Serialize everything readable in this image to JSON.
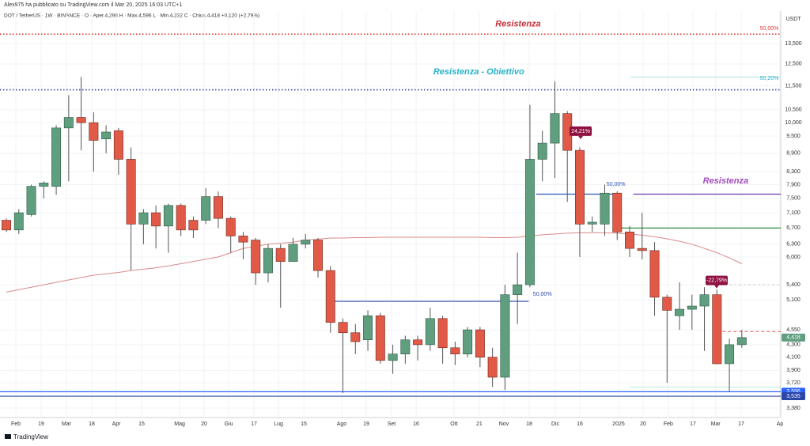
{
  "chart_data": {
    "type": "candlestick",
    "title": "Alex975 ha pubblicato su TradingView.com il Mar 20, 2025 16:03 UTC+1",
    "subtitle": "DOT / TetherUS · 1W · BINANCE · O · Aper.4,298  H · Max.4,596  L · Min.4,232  C · Chius.4,418  +0,120 (+2,79%)",
    "currency": "USDT",
    "footer": "TradingView",
    "log_scale": true,
    "grid": true,
    "xlim": [
      -0.51,
      62.12
    ],
    "ylim": [
      3.26,
      15.1
    ],
    "xticks": [
      {
        "value": 0.76,
        "label": "Feb"
      },
      {
        "value": 2.79,
        "label": "19"
      },
      {
        "value": 4.82,
        "label": "Mar"
      },
      {
        "value": 6.85,
        "label": "18"
      },
      {
        "value": 8.82,
        "label": "Apr"
      },
      {
        "value": 10.85,
        "label": "15"
      },
      {
        "value": 13.9,
        "label": "Mag"
      },
      {
        "value": 15.86,
        "label": "20"
      },
      {
        "value": 17.83,
        "label": "Giu"
      },
      {
        "value": 19.86,
        "label": "17"
      },
      {
        "value": 21.83,
        "label": "Lug"
      },
      {
        "value": 23.86,
        "label": "15"
      },
      {
        "value": 26.9,
        "label": "Ago"
      },
      {
        "value": 28.87,
        "label": "19"
      },
      {
        "value": 30.9,
        "label": "Set"
      },
      {
        "value": 32.87,
        "label": "16"
      },
      {
        "value": 35.91,
        "label": "Ott"
      },
      {
        "value": 37.94,
        "label": "21"
      },
      {
        "value": 39.91,
        "label": "Nov"
      },
      {
        "value": 41.94,
        "label": "18"
      },
      {
        "value": 44.04,
        "label": "Dic"
      },
      {
        "value": 46.0,
        "label": "16"
      },
      {
        "value": 49.11,
        "label": "2025"
      },
      {
        "value": 51.08,
        "label": "20"
      },
      {
        "value": 53.1,
        "label": "Feb"
      },
      {
        "value": 55.08,
        "label": "17"
      },
      {
        "value": 56.9,
        "label": "Mar"
      },
      {
        "value": 58.95,
        "label": "17"
      },
      {
        "value": 62.06,
        "label": "Ap"
      }
    ],
    "yticks": [
      {
        "value": 13.5,
        "label": "13,500"
      },
      {
        "value": 12.5,
        "label": "12,500"
      },
      {
        "value": 11.5,
        "label": "11,500"
      },
      {
        "value": 10.5,
        "label": "10,500"
      },
      {
        "value": 10.0,
        "label": "10,000"
      },
      {
        "value": 9.5,
        "label": "9,500"
      },
      {
        "value": 8.9,
        "label": "8,900"
      },
      {
        "value": 8.3,
        "label": "8,300"
      },
      {
        "value": 7.9,
        "label": "7,900"
      },
      {
        "value": 7.5,
        "label": "7,500"
      },
      {
        "value": 7.1,
        "label": "7,100"
      },
      {
        "value": 6.7,
        "label": "6,700"
      },
      {
        "value": 6.3,
        "label": "6,300"
      },
      {
        "value": 6.0,
        "label": "6,000"
      },
      {
        "value": 5.4,
        "label": "5,400"
      },
      {
        "value": 5.1,
        "label": "5,100"
      },
      {
        "value": 4.55,
        "label": "4,550"
      },
      {
        "value": 4.3,
        "label": "4,300"
      },
      {
        "value": 4.1,
        "label": "4,100"
      },
      {
        "value": 3.9,
        "label": "3,900"
      },
      {
        "value": 3.72,
        "label": "3,720"
      },
      {
        "value": 3.38,
        "label": "3,380"
      }
    ],
    "up_color": "#5f9e7f",
    "down_color": "#e05a47",
    "x": [
      0,
      1,
      2,
      3,
      4,
      5,
      6,
      7,
      8,
      9,
      10,
      11,
      12,
      13,
      14,
      15,
      16,
      17,
      18,
      19,
      20,
      21,
      22,
      23,
      24,
      25,
      26,
      27,
      28,
      29,
      30,
      31,
      32,
      33,
      34,
      35,
      36,
      37,
      38,
      39,
      40,
      41,
      42,
      43,
      44,
      45,
      46,
      47,
      48,
      49,
      50,
      51,
      52,
      53,
      54,
      55,
      56,
      57,
      58,
      59
    ],
    "open": [
      6.9,
      6.65,
      7.05,
      7.85,
      7.85,
      9.8,
      10.2,
      10.0,
      9.4,
      9.7,
      8.7,
      6.8,
      7.1,
      6.75,
      7.3,
      6.9,
      6.9,
      7.55,
      6.95,
      6.5,
      6.4,
      5.65,
      6.2,
      5.9,
      6.3,
      6.4,
      5.7,
      4.68,
      4.5,
      4.38,
      4.8,
      4.05,
      4.15,
      4.38,
      4.3,
      4.75,
      4.25,
      4.15,
      4.55,
      4.1,
      3.8,
      5.2,
      5.4,
      8.7,
      9.25,
      10.35,
      9.0,
      6.8,
      6.8,
      7.65,
      6.6,
      6.2,
      6.15,
      5.15,
      4.8,
      4.92,
      4.98,
      5.2,
      4.0,
      4.3
    ],
    "high": [
      6.95,
      7.2,
      7.9,
      8.0,
      9.9,
      11.1,
      11.9,
      10.4,
      9.9,
      9.8,
      9.1,
      7.2,
      7.3,
      7.35,
      7.35,
      7.0,
      7.8,
      7.7,
      7.0,
      6.6,
      6.45,
      6.3,
      6.3,
      6.45,
      6.55,
      6.45,
      5.8,
      4.75,
      4.65,
      4.9,
      4.85,
      4.3,
      4.45,
      4.45,
      4.95,
      4.8,
      4.35,
      4.6,
      4.6,
      4.25,
      5.4,
      6.1,
      10.7,
      9.7,
      11.7,
      10.45,
      9.1,
      7.0,
      7.9,
      7.7,
      6.75,
      7.1,
      6.35,
      5.2,
      5.45,
      5.2,
      5.35,
      5.3,
      4.4,
      4.55
    ],
    "low": [
      6.6,
      6.55,
      7.0,
      7.5,
      7.6,
      8.0,
      9.0,
      8.3,
      8.9,
      8.2,
      5.7,
      6.3,
      6.2,
      6.1,
      6.5,
      6.45,
      6.8,
      6.7,
      6.1,
      5.95,
      5.4,
      5.45,
      4.95,
      5.9,
      6.2,
      5.55,
      4.5,
      3.58,
      4.15,
      4.2,
      4.0,
      3.85,
      4.0,
      4.05,
      4.2,
      4.0,
      3.98,
      4.1,
      3.95,
      3.66,
      3.62,
      4.65,
      5.35,
      8.0,
      8.1,
      7.4,
      6.0,
      6.6,
      6.5,
      6.4,
      6.0,
      5.95,
      4.8,
      3.72,
      4.55,
      4.55,
      4.2,
      3.99,
      3.6,
      4.25
    ],
    "close": [
      6.65,
      7.1,
      7.85,
      7.95,
      9.8,
      10.2,
      10.0,
      9.35,
      9.65,
      8.7,
      6.8,
      7.1,
      6.75,
      7.3,
      6.65,
      6.65,
      7.55,
      6.95,
      6.5,
      6.35,
      5.65,
      6.2,
      5.9,
      6.3,
      6.4,
      5.7,
      4.68,
      4.5,
      4.35,
      4.8,
      4.05,
      4.15,
      4.38,
      4.3,
      4.75,
      4.25,
      4.15,
      4.55,
      4.1,
      3.8,
      5.2,
      5.4,
      8.7,
      9.25,
      10.35,
      9.0,
      6.8,
      6.85,
      7.65,
      6.6,
      6.2,
      6.15,
      5.15,
      4.9,
      4.92,
      4.98,
      5.2,
      4.0,
      4.3,
      4.418
    ],
    "moving_average": {
      "color": "#d98a8a",
      "values": [
        5.25,
        5.3,
        5.35,
        5.4,
        5.45,
        5.5,
        5.55,
        5.6,
        5.63,
        5.66,
        5.7,
        5.73,
        5.76,
        5.8,
        5.85,
        5.9,
        5.95,
        6.0,
        6.1,
        6.2,
        6.25,
        6.3,
        6.32,
        6.35,
        6.4,
        6.42,
        6.45,
        6.45,
        6.46,
        6.46,
        6.47,
        6.47,
        6.47,
        6.47,
        6.47,
        6.47,
        6.47,
        6.47,
        6.47,
        6.46,
        6.46,
        6.47,
        6.5,
        6.53,
        6.55,
        6.57,
        6.58,
        6.58,
        6.58,
        6.57,
        6.55,
        6.52,
        6.48,
        6.43,
        6.37,
        6.3,
        6.2,
        6.1,
        5.98,
        5.85
      ]
    },
    "levels": [
      {
        "value": 14.0,
        "color": "#e53935",
        "dash": "1.5 2.5",
        "width": 1.6
      },
      {
        "value": 11.33,
        "color": "#2a46a8",
        "dash": "1.5 2.5",
        "width": 1.6
      },
      {
        "value": 11.9,
        "color": "#9fdde4",
        "from": 50.0,
        "width": 0.8
      },
      {
        "value": 7.62,
        "color": "#6a3db0",
        "from": 50.3,
        "width": 1.2
      },
      {
        "value": 7.62,
        "color": "#2a55c0",
        "from": 42.5,
        "to": 49.0,
        "width": 1.2
      },
      {
        "value": 6.7,
        "color": "#2e8b3e",
        "from": 49.0,
        "width": 1.2
      },
      {
        "value": 5.4,
        "color": "#bbbbbb",
        "dash": "3 3",
        "from": 58.0,
        "width": 0.8
      },
      {
        "value": 5.07,
        "color": "#2a46a8",
        "from": 26.1,
        "to": 41.9,
        "width": 1.2
      },
      {
        "value": 4.52,
        "color": "#e05a47",
        "dash": "4 3",
        "from": 57.0,
        "width": 1
      },
      {
        "value": 3.66,
        "color": "#9fdde4",
        "from": 50.0,
        "width": 0.8
      },
      {
        "value": 3.596,
        "color": "#2962ff",
        "width": 1.2
      },
      {
        "value": 3.535,
        "color": "#2a46a8",
        "width": 1.2
      }
    ],
    "price_tags": [
      {
        "value": 4.418,
        "label": "4,418",
        "color": "#5f9e7f"
      },
      {
        "value": 3.596,
        "label": "3,596",
        "color": "#2962ff"
      },
      {
        "value": 3.535,
        "label": "3,535",
        "color": "#2a46a8"
      }
    ],
    "annotations": [
      {
        "text": "Resistenza",
        "x": 41.05,
        "y": 14.55,
        "color": "#c62f3a",
        "style": "big"
      },
      {
        "text": "Resistenza - Obiettivo",
        "x": 37.9,
        "y": 12.12,
        "color": "#27b2c8",
        "style": "big"
      },
      {
        "text": "Resistenza",
        "x": 57.7,
        "y": 8.01,
        "color": "#a14bbd",
        "style": "big"
      },
      {
        "text": "50,00%",
        "x": 61.2,
        "y": 14.3,
        "color": "#e53935",
        "style": "small"
      },
      {
        "text": "50,20%",
        "x": 61.2,
        "y": 11.83,
        "color": "#27b2c8",
        "style": "small"
      },
      {
        "text": "50,00%",
        "x": 48.9,
        "y": 7.91,
        "color": "#2a55c0",
        "style": "small"
      },
      {
        "text": "50,00%",
        "x": 43.0,
        "y": 5.21,
        "color": "#2a46a8",
        "style": "small"
      }
    ],
    "callouts": [
      {
        "text": "24,21%",
        "x": 46.07,
        "y": 9.68,
        "color": "#8e1142"
      },
      {
        "text": "-22,79%",
        "x": 56.98,
        "y": 5.49,
        "color": "#8e1142"
      }
    ]
  }
}
